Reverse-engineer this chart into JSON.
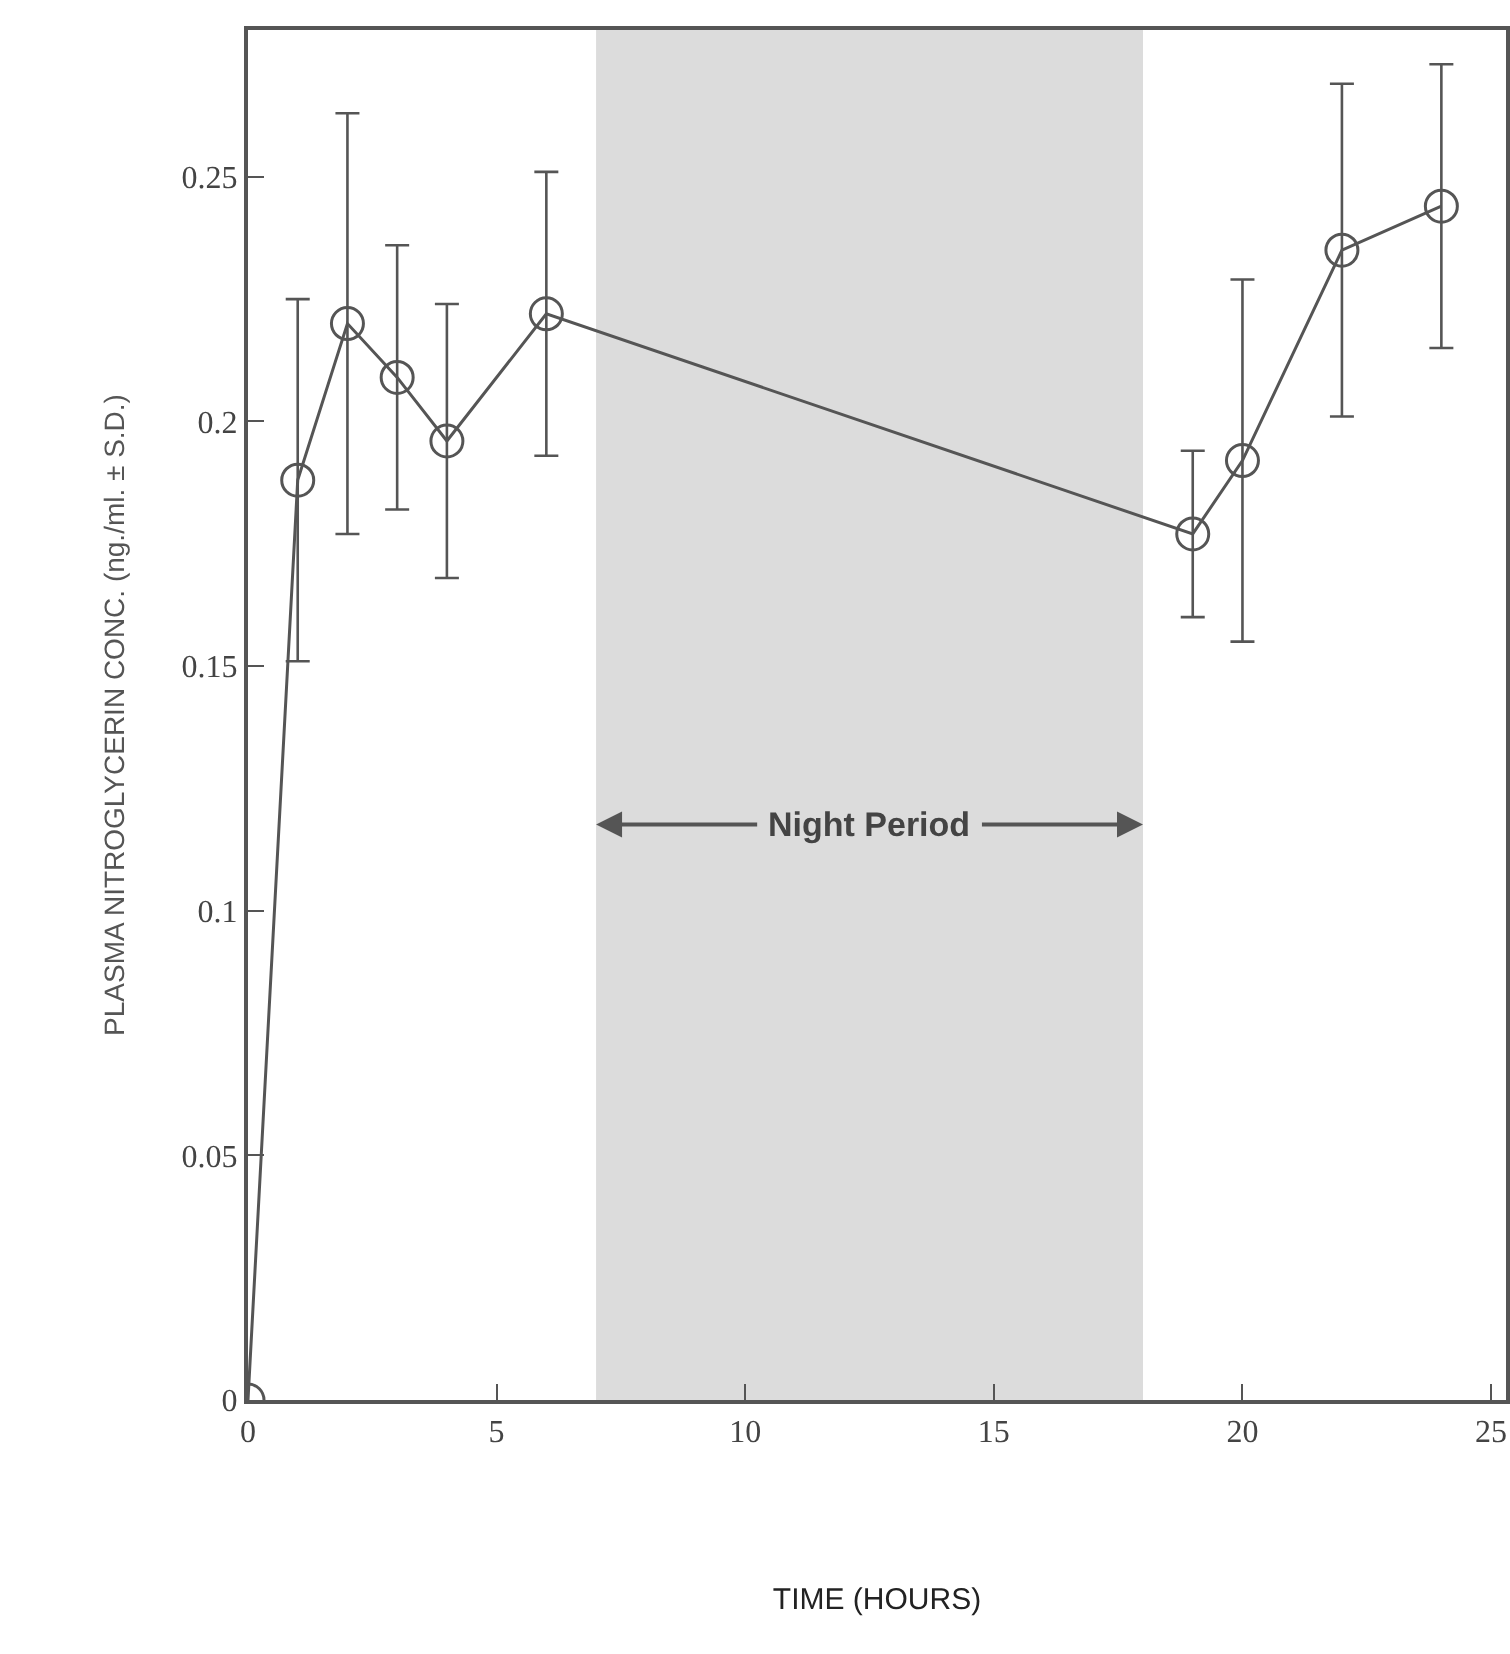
{
  "chart_data": {
    "type": "line",
    "xlabel": "TIME (HOURS)",
    "ylabel": "PLASMA NITROGLYCERIN CONC. (ng./ml. ± S.D.)",
    "xlim": [
      0,
      25.3
    ],
    "xticks": [
      0,
      5,
      10,
      15,
      20,
      25
    ],
    "ylim": [
      0,
      0.28
    ],
    "yticks": [
      0,
      0.05,
      0.1,
      0.15,
      0.2,
      0.25
    ],
    "grid": false,
    "series": [
      {
        "color": "#555555",
        "marker": "circle",
        "x": [
          0,
          1,
          2,
          3,
          4,
          6,
          19,
          20,
          22,
          24
        ],
        "values": [
          0,
          0.188,
          0.22,
          0.209,
          0.196,
          0.222,
          0.177,
          0.192,
          0.235,
          0.244
        ],
        "errors": [
          null,
          0.037,
          0.043,
          0.027,
          0.028,
          0.029,
          0.017,
          0.037,
          0.034,
          0.029
        ]
      }
    ],
    "bands": [
      {
        "axis": "x",
        "from": 7,
        "to": 18,
        "label": "Night Period",
        "color": "#dcdcdc"
      }
    ]
  }
}
